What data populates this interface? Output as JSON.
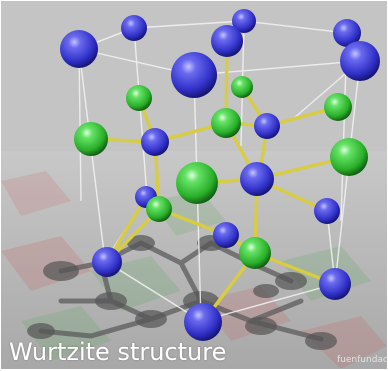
{
  "caption": "Wurtzite structure",
  "credit": "fuenfundac",
  "colors": {
    "background": "#bcbcbc",
    "cation": "#3838d0",
    "anion": "#3cc43c",
    "bond": "#d8cc40",
    "cell_edge": "#f4f4f4"
  },
  "atom_kinds": [
    "cation-atom",
    "anion-atom"
  ]
}
